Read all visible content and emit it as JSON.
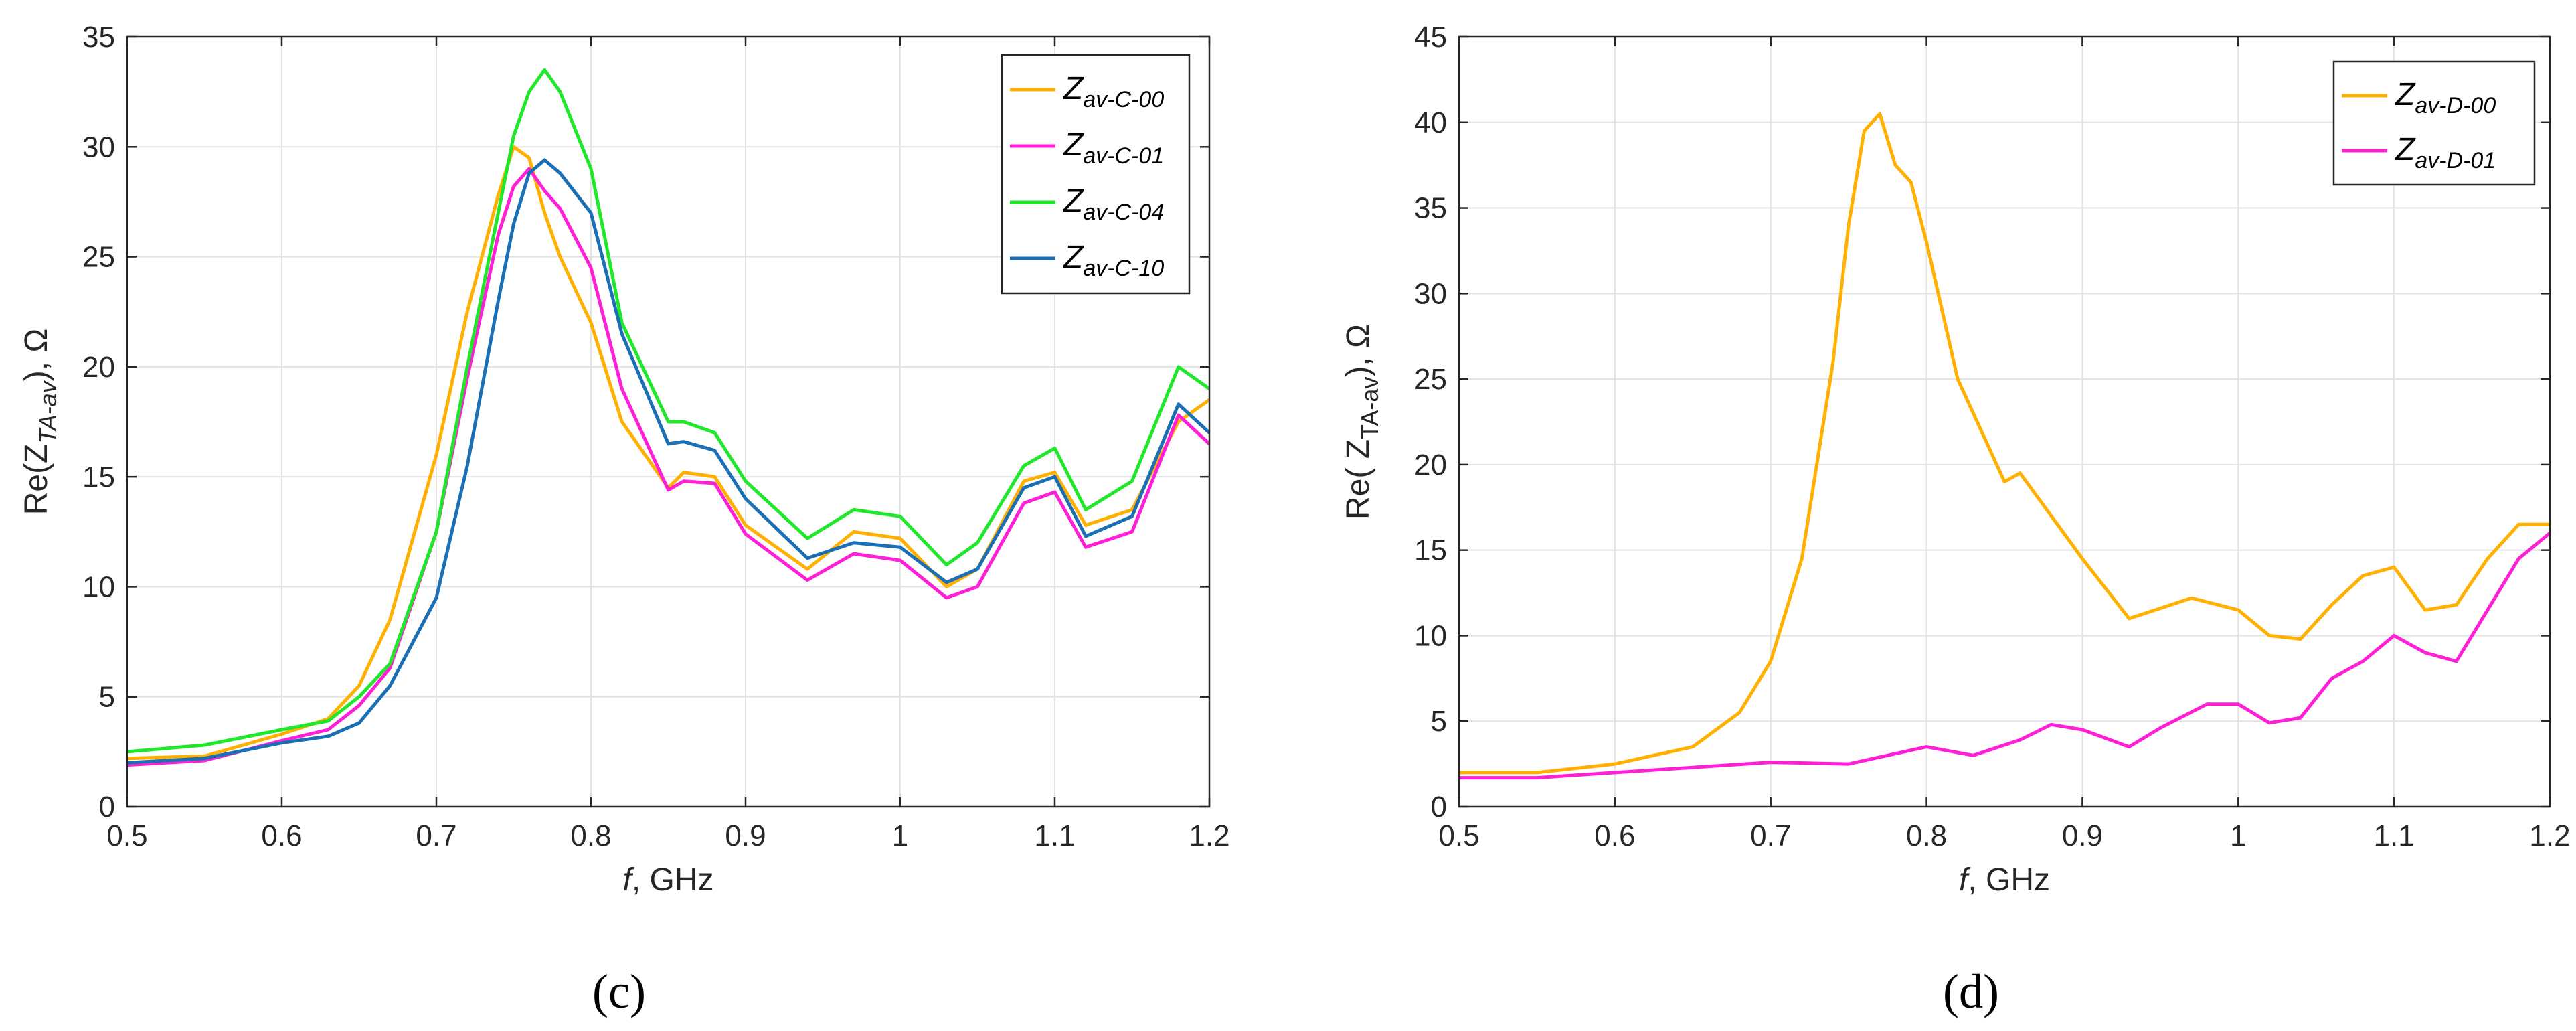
{
  "chart_data": [
    {
      "panel_label": "(c)",
      "type": "line",
      "xlabel_italic": "f",
      "xlabel_rest": ", GHz",
      "ylabel_main": "Re(Z",
      "ylabel_sub": "TA-av",
      "ylabel_end": "), Ω",
      "xlim": [
        0.5,
        1.2
      ],
      "ylim": [
        0,
        35
      ],
      "xticks": [
        0.5,
        0.6,
        0.7,
        0.8,
        0.9,
        1,
        1.1,
        1.2
      ],
      "yticks": [
        0,
        5,
        10,
        15,
        20,
        25,
        30,
        35
      ],
      "grid": true,
      "legend_position": "top-right",
      "series": [
        {
          "name": "Z",
          "name_sub": "av-C-00",
          "color": "#ffb000",
          "x": [
            0.5,
            0.55,
            0.6,
            0.63,
            0.65,
            0.67,
            0.7,
            0.72,
            0.74,
            0.75,
            0.76,
            0.77,
            0.78,
            0.8,
            0.82,
            0.85,
            0.86,
            0.88,
            0.9,
            0.94,
            0.97,
            1.0,
            1.03,
            1.05,
            1.08,
            1.1,
            1.12,
            1.15,
            1.18,
            1.2
          ],
          "y": [
            2.2,
            2.3,
            3.3,
            4.0,
            5.5,
            8.5,
            16,
            22.5,
            27.8,
            30.0,
            29.5,
            27.0,
            25.0,
            22.0,
            17.5,
            14.5,
            15.2,
            15.0,
            12.8,
            10.8,
            12.5,
            12.2,
            10.0,
            10.8,
            14.8,
            15.2,
            12.8,
            13.5,
            17.5,
            18.5
          ]
        },
        {
          "name": "Z",
          "name_sub": "av-C-01",
          "color": "#ff1fd6",
          "x": [
            0.5,
            0.55,
            0.6,
            0.63,
            0.65,
            0.67,
            0.7,
            0.72,
            0.74,
            0.75,
            0.76,
            0.77,
            0.78,
            0.8,
            0.82,
            0.85,
            0.86,
            0.88,
            0.9,
            0.94,
            0.97,
            1.0,
            1.03,
            1.05,
            1.08,
            1.1,
            1.12,
            1.15,
            1.18,
            1.2
          ],
          "y": [
            1.9,
            2.1,
            3.0,
            3.5,
            4.6,
            6.3,
            12.5,
            19.5,
            26.0,
            28.2,
            29.0,
            28.0,
            27.2,
            24.5,
            19.0,
            14.4,
            14.8,
            14.7,
            12.4,
            10.3,
            11.5,
            11.2,
            9.5,
            10.0,
            13.8,
            14.3,
            11.8,
            12.5,
            17.8,
            16.5
          ]
        },
        {
          "name": "Z",
          "name_sub": "av-C-04",
          "color": "#1fe82a",
          "x": [
            0.5,
            0.55,
            0.6,
            0.63,
            0.65,
            0.67,
            0.7,
            0.72,
            0.74,
            0.75,
            0.76,
            0.77,
            0.78,
            0.8,
            0.82,
            0.85,
            0.86,
            0.88,
            0.9,
            0.94,
            0.97,
            1.0,
            1.03,
            1.05,
            1.08,
            1.1,
            1.12,
            1.15,
            1.18,
            1.2
          ],
          "y": [
            2.5,
            2.8,
            3.5,
            3.9,
            5.0,
            6.5,
            12.5,
            20.0,
            27.0,
            30.5,
            32.5,
            33.5,
            32.5,
            29.0,
            22.0,
            17.5,
            17.5,
            17.0,
            14.8,
            12.2,
            13.5,
            13.2,
            11.0,
            12.0,
            15.5,
            16.3,
            13.5,
            14.8,
            20.0,
            19.0
          ]
        },
        {
          "name": "Z",
          "name_sub": "av-C-10",
          "color": "#1a6fb5",
          "x": [
            0.5,
            0.55,
            0.6,
            0.63,
            0.65,
            0.67,
            0.7,
            0.72,
            0.74,
            0.75,
            0.76,
            0.77,
            0.78,
            0.8,
            0.82,
            0.85,
            0.86,
            0.88,
            0.9,
            0.94,
            0.97,
            1.0,
            1.03,
            1.05,
            1.08,
            1.1,
            1.12,
            1.15,
            1.18,
            1.2
          ],
          "y": [
            2.0,
            2.2,
            2.9,
            3.2,
            3.8,
            5.5,
            9.5,
            15.5,
            23.0,
            26.5,
            28.8,
            29.4,
            28.8,
            27.0,
            21.5,
            16.5,
            16.6,
            16.2,
            14.0,
            11.3,
            12.0,
            11.8,
            10.2,
            10.8,
            14.5,
            15.0,
            12.3,
            13.2,
            18.3,
            17.0
          ]
        }
      ]
    },
    {
      "panel_label": "(d)",
      "type": "line",
      "xlabel_italic": "f",
      "xlabel_rest": ", GHz",
      "ylabel_main": "Re( Z",
      "ylabel_sub": "TA-av",
      "ylabel_end": "), Ω",
      "xlim": [
        0.5,
        1.2
      ],
      "ylim": [
        0,
        45
      ],
      "xticks": [
        0.5,
        0.6,
        0.7,
        0.8,
        0.9,
        1,
        1.1,
        1.2
      ],
      "yticks": [
        0,
        5,
        10,
        15,
        20,
        25,
        30,
        35,
        40,
        45
      ],
      "grid": true,
      "legend_position": "top-right",
      "series": [
        {
          "name": "Z",
          "name_sub": "av-D-00",
          "color": "#ffb000",
          "x": [
            0.5,
            0.55,
            0.6,
            0.65,
            0.68,
            0.7,
            0.72,
            0.74,
            0.75,
            0.76,
            0.77,
            0.78,
            0.79,
            0.8,
            0.82,
            0.84,
            0.85,
            0.86,
            0.88,
            0.9,
            0.93,
            0.97,
            1.0,
            1.02,
            1.04,
            1.06,
            1.08,
            1.1,
            1.12,
            1.14,
            1.16,
            1.18,
            1.2
          ],
          "y": [
            2.0,
            2.0,
            2.5,
            3.5,
            5.5,
            8.5,
            14.5,
            26.0,
            34.0,
            39.5,
            40.5,
            37.5,
            36.5,
            33.0,
            25.0,
            21.0,
            19.0,
            19.5,
            17.0,
            14.5,
            11.0,
            12.2,
            11.5,
            10.0,
            9.8,
            11.8,
            13.5,
            14.0,
            11.5,
            11.8,
            14.5,
            16.5,
            16.5
          ]
        },
        {
          "name": "Z",
          "name_sub": "av-D-01",
          "color": "#ff1fd6",
          "x": [
            0.5,
            0.55,
            0.6,
            0.65,
            0.7,
            0.75,
            0.8,
            0.83,
            0.86,
            0.88,
            0.9,
            0.93,
            0.95,
            0.98,
            1.0,
            1.02,
            1.04,
            1.06,
            1.08,
            1.1,
            1.12,
            1.14,
            1.16,
            1.18,
            1.2
          ],
          "y": [
            1.7,
            1.7,
            2.0,
            2.3,
            2.6,
            2.5,
            3.5,
            3.0,
            3.9,
            4.8,
            4.5,
            3.5,
            4.6,
            6.0,
            6.0,
            4.9,
            5.2,
            7.5,
            8.5,
            10.0,
            9.0,
            8.5,
            11.5,
            14.5,
            16.0
          ]
        }
      ]
    }
  ]
}
